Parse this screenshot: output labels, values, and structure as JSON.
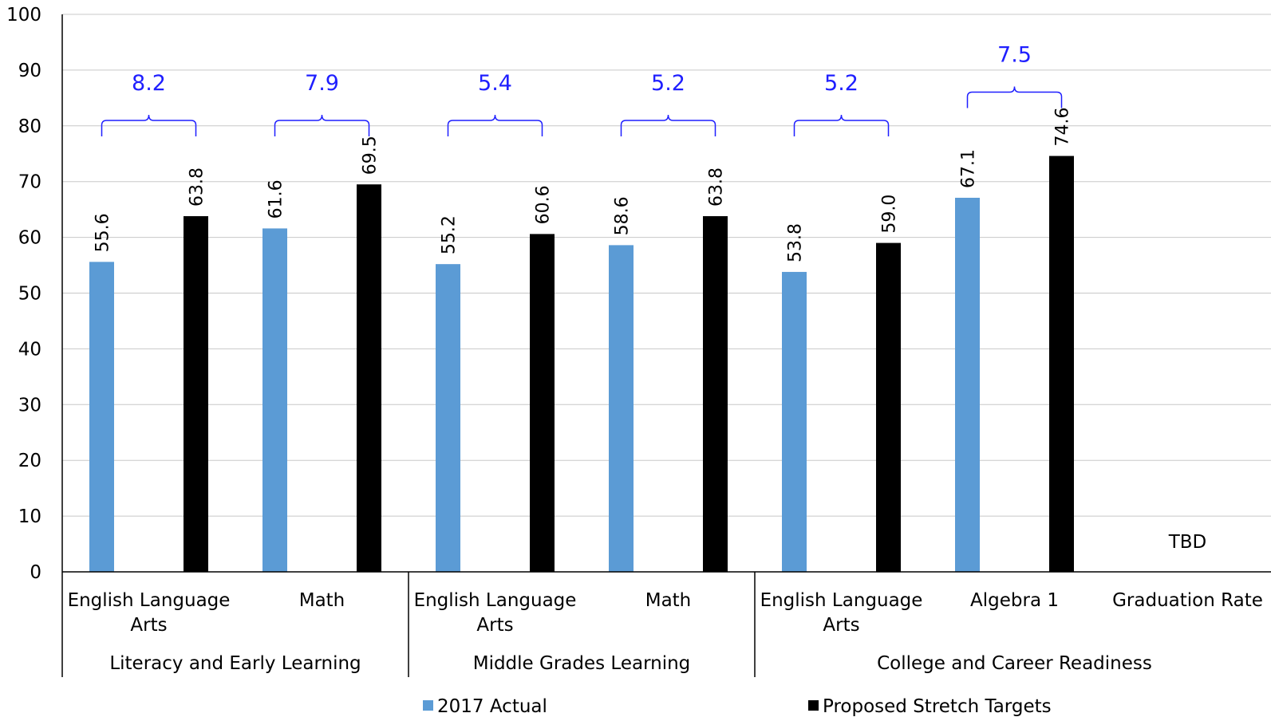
{
  "chart_data": {
    "type": "bar",
    "ylim": [
      0,
      100
    ],
    "yticks": [
      0,
      10,
      20,
      30,
      40,
      50,
      60,
      70,
      80,
      90,
      100
    ],
    "grid": true,
    "legend_position": "bottom",
    "colors": {
      "actual": "#5b9bd5",
      "target": "#000000",
      "gap": "#1f1fff",
      "grid": "#c8c8c8"
    },
    "groups": [
      {
        "name": "Literacy and Early Learning",
        "categories": [
          "English Language Arts",
          "Math"
        ]
      },
      {
        "name": "Middle Grades Learning",
        "categories": [
          "English Language Arts",
          "Math"
        ]
      },
      {
        "name": "College and Career Readiness",
        "categories": [
          "English Language Arts",
          "Algebra 1",
          "Graduation Rate"
        ]
      }
    ],
    "categories": [
      [
        "English Language",
        "Arts"
      ],
      [
        "Math"
      ],
      [
        "English Language",
        "Arts"
      ],
      [
        "Math"
      ],
      [
        "English Language",
        "Arts"
      ],
      [
        "Algebra 1"
      ],
      [
        "Graduation Rate"
      ]
    ],
    "series": [
      {
        "name": "2017 Actual",
        "values": [
          55.6,
          61.6,
          55.2,
          58.6,
          53.8,
          67.1,
          null
        ],
        "labels": [
          "55.6",
          "61.6",
          "55.2",
          "58.6",
          "53.8",
          "67.1",
          ""
        ]
      },
      {
        "name": "Proposed Stretch Targets",
        "values": [
          63.8,
          69.5,
          60.6,
          63.8,
          59.0,
          74.6,
          null
        ],
        "labels": [
          "63.8",
          "69.5",
          "60.6",
          "63.8",
          "59.0",
          "74.6",
          ""
        ]
      }
    ],
    "annotations": [
      {
        "category_index": 0,
        "text": "8.2"
      },
      {
        "category_index": 1,
        "text": "7.9"
      },
      {
        "category_index": 2,
        "text": "5.4"
      },
      {
        "category_index": 3,
        "text": "5.2"
      },
      {
        "category_index": 4,
        "text": "5.2"
      },
      {
        "category_index": 5,
        "text": "7.5"
      }
    ],
    "tbd": {
      "category_index": 6,
      "text": "TBD"
    }
  }
}
